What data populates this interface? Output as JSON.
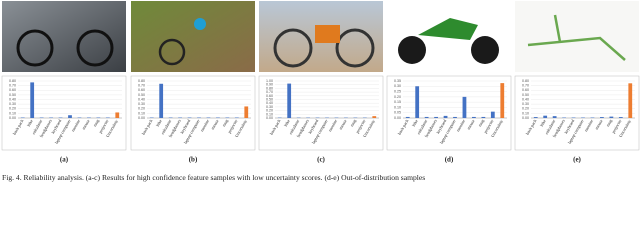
{
  "caption": "Fig. 4.  Reliability analysis.  (a-c) Results for high confidence feature samples with low uncertainty scores.  (d-e) Out-of-distribution samples",
  "chart_data": [
    {
      "type": "bar",
      "label": "(a)",
      "categories": [
        "back pack",
        "bike",
        "calculator",
        "headphones",
        "keyboard",
        "laptop computer",
        "monitor",
        "mouse",
        "mug",
        "projector",
        "Uncertainty"
      ],
      "values": [
        0.01,
        0.77,
        0.01,
        0.01,
        0.01,
        0.06,
        0.01,
        0.01,
        0.01,
        0.01,
        0.12
      ],
      "colors": [
        "#4472c4",
        "#4472c4",
        "#4472c4",
        "#4472c4",
        "#4472c4",
        "#4472c4",
        "#4472c4",
        "#4472c4",
        "#4472c4",
        "#4472c4",
        "#ed7d31"
      ],
      "ylim": [
        0,
        0.8
      ],
      "yticks": [
        {
          "value": 0,
          "label": "0.00"
        },
        {
          "value": 0.1,
          "label": "0.10"
        },
        {
          "value": 0.2,
          "label": "0.20"
        },
        {
          "value": 0.3,
          "label": "0.30"
        },
        {
          "value": 0.4,
          "label": "0.40"
        },
        {
          "value": 0.5,
          "label": "0.50"
        },
        {
          "value": 0.6,
          "label": "0.60"
        },
        {
          "value": 0.7,
          "label": "0.70"
        },
        {
          "value": 0.8,
          "label": "0.80"
        }
      ]
    },
    {
      "type": "bar",
      "label": "(b)",
      "categories": [
        "back pack",
        "bike",
        "calculator",
        "headphones",
        "keyboard",
        "laptop computer",
        "monitor",
        "mouse",
        "mug",
        "projector",
        "Uncertainty"
      ],
      "values": [
        0.01,
        0.74,
        0.01,
        0.01,
        0.01,
        0.01,
        0.01,
        0.01,
        0.01,
        0.01,
        0.25
      ],
      "colors": [
        "#4472c4",
        "#4472c4",
        "#4472c4",
        "#4472c4",
        "#4472c4",
        "#4472c4",
        "#4472c4",
        "#4472c4",
        "#4472c4",
        "#4472c4",
        "#ed7d31"
      ],
      "ylim": [
        0,
        0.8
      ],
      "yticks": [
        {
          "value": 0,
          "label": "0.00"
        },
        {
          "value": 0.1,
          "label": "0.10"
        },
        {
          "value": 0.2,
          "label": "0.20"
        },
        {
          "value": 0.3,
          "label": "0.30"
        },
        {
          "value": 0.4,
          "label": "0.40"
        },
        {
          "value": 0.5,
          "label": "0.50"
        },
        {
          "value": 0.6,
          "label": "0.60"
        },
        {
          "value": 0.7,
          "label": "0.70"
        },
        {
          "value": 0.8,
          "label": "0.80"
        }
      ]
    },
    {
      "type": "bar",
      "label": "(c)",
      "categories": [
        "back pack",
        "bike",
        "calculator",
        "headphones",
        "keyboard",
        "laptop computer",
        "monitor",
        "mouse",
        "mug",
        "projector",
        "Uncertainty"
      ],
      "values": [
        0.01,
        0.93,
        0.01,
        0.01,
        0.01,
        0.01,
        0.01,
        0.01,
        0.01,
        0.01,
        0.05
      ],
      "colors": [
        "#4472c4",
        "#4472c4",
        "#4472c4",
        "#4472c4",
        "#4472c4",
        "#4472c4",
        "#4472c4",
        "#4472c4",
        "#4472c4",
        "#4472c4",
        "#ed7d31"
      ],
      "ylim": [
        0,
        1
      ],
      "yticks": [
        {
          "value": 0,
          "label": "0.00"
        },
        {
          "value": 0.1,
          "label": "0.10"
        },
        {
          "value": 0.2,
          "label": "0.20"
        },
        {
          "value": 0.3,
          "label": "0.30"
        },
        {
          "value": 0.4,
          "label": "0.40"
        },
        {
          "value": 0.5,
          "label": "0.50"
        },
        {
          "value": 0.6,
          "label": "0.60"
        },
        {
          "value": 0.7,
          "label": "0.70"
        },
        {
          "value": 0.8,
          "label": "0.80"
        },
        {
          "value": 0.9,
          "label": "0.90"
        },
        {
          "value": 1,
          "label": "1.00"
        }
      ]
    },
    {
      "type": "bar",
      "label": "(d)",
      "categories": [
        "back pack",
        "bike",
        "calculator",
        "headphones",
        "keyboard",
        "laptop computer",
        "monitor",
        "mouse",
        "mug",
        "projector",
        "Uncertainty"
      ],
      "values": [
        0.01,
        0.3,
        0.01,
        0.01,
        0.02,
        0.01,
        0.2,
        0.01,
        0.01,
        0.06,
        0.33
      ],
      "colors": [
        "#4472c4",
        "#4472c4",
        "#4472c4",
        "#4472c4",
        "#4472c4",
        "#4472c4",
        "#4472c4",
        "#4472c4",
        "#4472c4",
        "#4472c4",
        "#ed7d31"
      ],
      "ylim": [
        0,
        0.35
      ],
      "yticks": [
        {
          "value": 0,
          "label": "0.00"
        },
        {
          "value": 0.05,
          "label": "0.05"
        },
        {
          "value": 0.1,
          "label": "0.10"
        },
        {
          "value": 0.15,
          "label": "0.15"
        },
        {
          "value": 0.2,
          "label": "0.20"
        },
        {
          "value": 0.25,
          "label": "0.25"
        },
        {
          "value": 0.3,
          "label": "0.30"
        },
        {
          "value": 0.35,
          "label": "0.35"
        }
      ]
    },
    {
      "type": "bar",
      "label": "(e)",
      "categories": [
        "back pack",
        "bike",
        "calculator",
        "headphones",
        "keyboard",
        "laptop computer",
        "monitor",
        "mouse",
        "mug",
        "projector",
        "Uncertainty"
      ],
      "values": [
        0.02,
        0.05,
        0.04,
        0.01,
        0.01,
        0.01,
        0.01,
        0.02,
        0.03,
        0.02,
        0.75
      ],
      "colors": [
        "#4472c4",
        "#4472c4",
        "#4472c4",
        "#4472c4",
        "#4472c4",
        "#4472c4",
        "#4472c4",
        "#4472c4",
        "#4472c4",
        "#4472c4",
        "#ed7d31"
      ],
      "ylim": [
        0,
        0.8
      ],
      "yticks": [
        {
          "value": 0,
          "label": "0.00"
        },
        {
          "value": 0.1,
          "label": "0.10"
        },
        {
          "value": 0.2,
          "label": "0.20"
        },
        {
          "value": 0.3,
          "label": "0.30"
        },
        {
          "value": 0.4,
          "label": "0.40"
        },
        {
          "value": 0.5,
          "label": "0.50"
        },
        {
          "value": 0.6,
          "label": "0.60"
        },
        {
          "value": 0.7,
          "label": "0.70"
        },
        {
          "value": 0.8,
          "label": "0.80"
        }
      ]
    }
  ]
}
